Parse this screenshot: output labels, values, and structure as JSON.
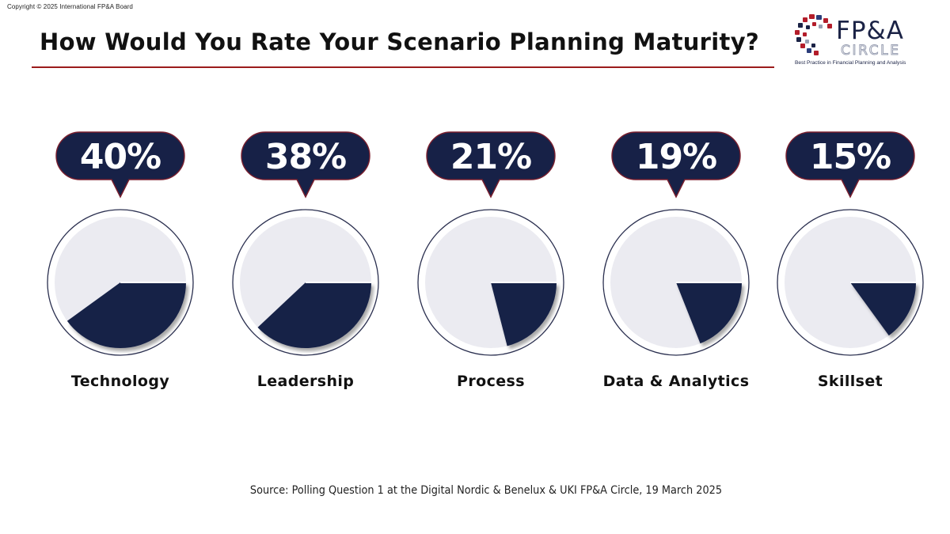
{
  "copyright": "Copyright © 2025 International FP&A Board",
  "title": "How Would You Rate Your Scenario Planning Maturity?",
  "logo": {
    "name": "FP&A",
    "sub": "CIRCLE",
    "tagline": "Best Practice in Financial Planning and Analysis"
  },
  "colors": {
    "navy": "#172147",
    "pie_background": "#ebebf1",
    "accent_red": "#9b1c1c"
  },
  "chart_data": {
    "type": "pie",
    "title": "How Would You Rate Your Scenario Planning Maturity?",
    "unit": "%",
    "categories": [
      "Technology",
      "Leadership",
      "Process",
      "Data & Analytics",
      "Skillset"
    ],
    "values": [
      40,
      38,
      21,
      19,
      15
    ],
    "value_labels": [
      "40%",
      "38%",
      "21%",
      "19%",
      "15%"
    ]
  },
  "source": "Source: Polling Question 1 at the Digital Nordic & Benelux & UKI FP&A Circle, 19 March 2025"
}
